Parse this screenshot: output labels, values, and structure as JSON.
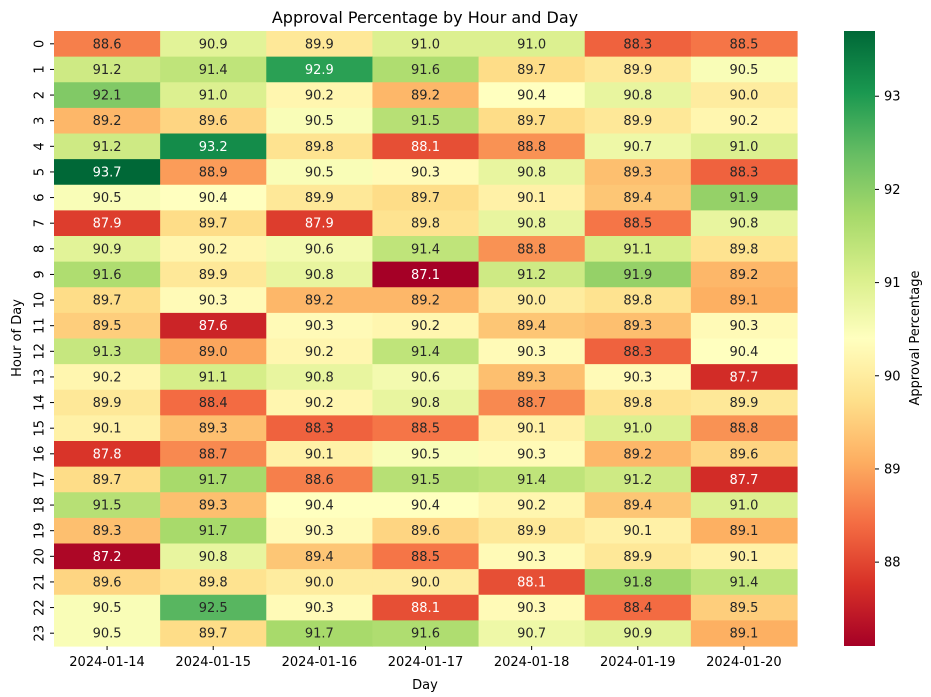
{
  "chart_data": {
    "type": "heatmap",
    "title": "Approval Percentage by Hour and Day",
    "xlabel": "Day",
    "ylabel": "Hour of Day",
    "colorbar_label": "Approval Percentage",
    "colormap": "RdYlGn",
    "vmin": 87.1,
    "vmax": 93.7,
    "colorbar_ticks": [
      "88",
      "89",
      "90",
      "91",
      "92",
      "93"
    ],
    "x": [
      "2024-01-14",
      "2024-01-15",
      "2024-01-16",
      "2024-01-17",
      "2024-01-18",
      "2024-01-19",
      "2024-01-20"
    ],
    "y": [
      "0",
      "1",
      "2",
      "3",
      "4",
      "5",
      "6",
      "7",
      "8",
      "9",
      "10",
      "11",
      "12",
      "13",
      "14",
      "15",
      "16",
      "17",
      "18",
      "19",
      "20",
      "21",
      "22",
      "23"
    ],
    "values": [
      [
        88.6,
        90.9,
        89.9,
        91.0,
        91.0,
        88.3,
        88.5
      ],
      [
        91.2,
        91.4,
        92.9,
        91.6,
        89.7,
        89.9,
        90.5
      ],
      [
        92.1,
        91.0,
        90.2,
        89.2,
        90.4,
        90.8,
        90.0
      ],
      [
        89.2,
        89.6,
        90.5,
        91.5,
        89.7,
        89.9,
        90.2
      ],
      [
        91.2,
        93.2,
        89.8,
        88.1,
        88.8,
        90.7,
        91.0
      ],
      [
        93.7,
        88.9,
        90.5,
        90.3,
        90.8,
        89.3,
        88.3
      ],
      [
        90.5,
        90.4,
        89.9,
        89.7,
        90.1,
        89.4,
        91.9
      ],
      [
        87.9,
        89.7,
        87.9,
        89.8,
        90.8,
        88.5,
        90.8
      ],
      [
        90.9,
        90.2,
        90.6,
        91.4,
        88.8,
        91.1,
        89.8
      ],
      [
        91.6,
        89.9,
        90.8,
        87.1,
        91.2,
        91.9,
        89.2
      ],
      [
        89.7,
        90.3,
        89.2,
        89.2,
        90.0,
        89.8,
        89.1
      ],
      [
        89.5,
        87.6,
        90.3,
        90.2,
        89.4,
        89.3,
        90.3
      ],
      [
        91.3,
        89.0,
        90.2,
        91.4,
        90.3,
        88.3,
        90.4
      ],
      [
        90.2,
        91.1,
        90.8,
        90.6,
        89.3,
        90.3,
        87.7
      ],
      [
        89.9,
        88.4,
        90.2,
        90.8,
        88.7,
        89.8,
        89.9
      ],
      [
        90.1,
        89.3,
        88.3,
        88.5,
        90.1,
        91.0,
        88.8
      ],
      [
        87.8,
        88.7,
        90.1,
        90.5,
        90.3,
        89.2,
        89.6
      ],
      [
        89.7,
        91.7,
        88.6,
        91.5,
        91.4,
        91.2,
        87.7
      ],
      [
        91.5,
        89.3,
        90.4,
        90.4,
        90.2,
        89.4,
        91.0
      ],
      [
        89.3,
        91.7,
        90.3,
        89.6,
        89.9,
        90.1,
        89.1
      ],
      [
        87.2,
        90.8,
        89.4,
        88.5,
        90.3,
        89.9,
        90.1
      ],
      [
        89.6,
        89.8,
        90.0,
        90.0,
        88.1,
        91.8,
        91.4
      ],
      [
        90.5,
        92.5,
        90.3,
        88.1,
        90.3,
        88.4,
        89.5
      ],
      [
        90.5,
        89.7,
        91.7,
        91.6,
        90.7,
        90.9,
        89.1
      ]
    ]
  }
}
